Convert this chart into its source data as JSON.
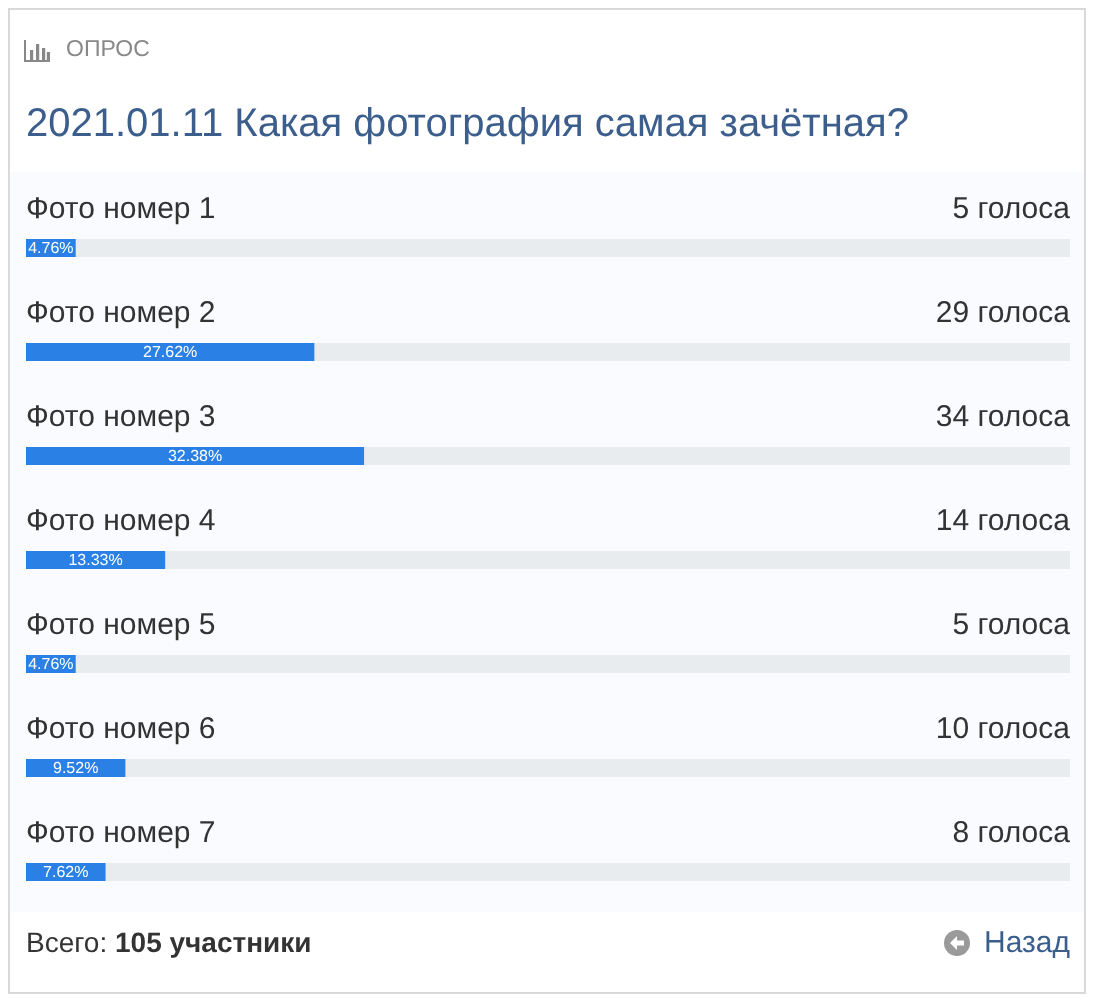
{
  "chart_data": {
    "type": "bar",
    "orientation": "horizontal",
    "title": "2021.01.11 Какая фотография самая зачётная?",
    "subtitle": "ОПРОС",
    "categories": [
      "Фото номер 1",
      "Фото номер 2",
      "Фото номер 3",
      "Фото номер 4",
      "Фото номер 5",
      "Фото номер 6",
      "Фото номер 7"
    ],
    "values": [
      4.76,
      27.62,
      32.38,
      13.33,
      4.76,
      9.52,
      7.62
    ],
    "value_labels": [
      "4.76%",
      "27.62%",
      "32.38%",
      "13.33%",
      "4.76%",
      "9.52%",
      "7.62%"
    ],
    "color": "#2a80e4",
    "xlim": [
      0,
      100
    ],
    "tick_labels": "y",
    "annotations": [
      "5 голоса",
      "29 голоса",
      "34 голоса",
      "14 голоса",
      "5 голоса",
      "10 голоса",
      "8 голоса",
      "Всего: 105 участники",
      "Назад"
    ]
  }
}
